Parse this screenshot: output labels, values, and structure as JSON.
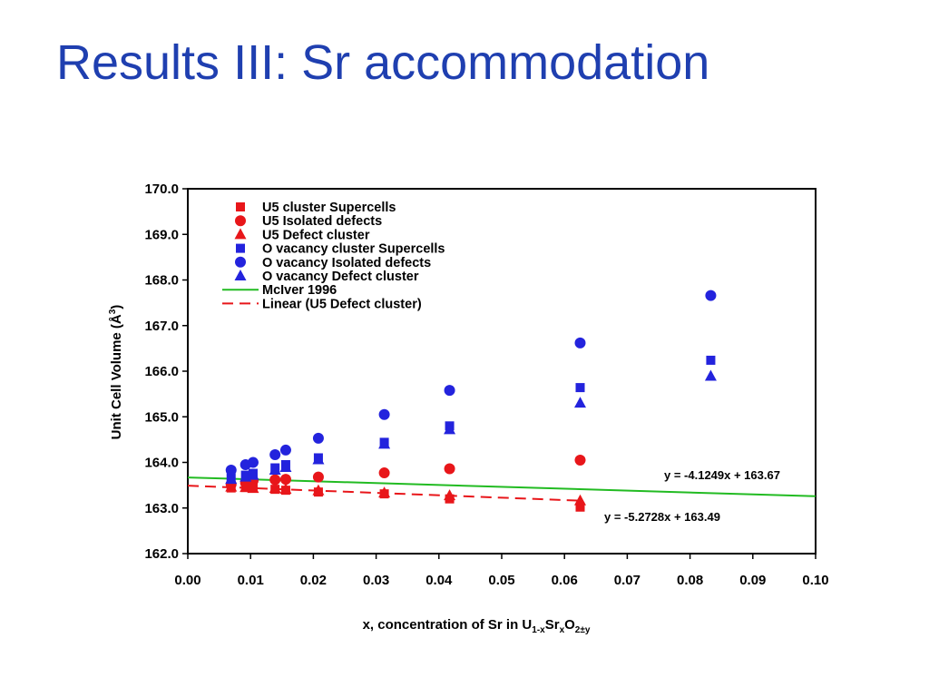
{
  "slide": {
    "title": "Results III: Sr accommodation"
  },
  "chart_data": {
    "type": "scatter",
    "xlabel": "x, concentration of Sr in U1-xSrxO2±y",
    "ylabel": "Unit Cell Volume (Å3)",
    "xlim": [
      0.0,
      0.1
    ],
    "ylim": [
      162.0,
      170.0
    ],
    "xticks": [
      "0.00",
      "0.01",
      "0.02",
      "0.03",
      "0.04",
      "0.05",
      "0.06",
      "0.07",
      "0.08",
      "0.09",
      "0.10"
    ],
    "yticks": [
      "162.0",
      "163.0",
      "164.0",
      "165.0",
      "166.0",
      "167.0",
      "168.0",
      "169.0",
      "170.0"
    ],
    "grid": false,
    "legend_position": "top-left",
    "colors": {
      "red": "#e8161a",
      "blue": "#2323dd",
      "green": "#22bb22"
    },
    "series": [
      {
        "name": "U5 cluster Supercells",
        "marker": "square",
        "color": "#e8161a",
        "points": [
          [
            0.0069,
            163.44
          ],
          [
            0.0092,
            163.45
          ],
          [
            0.0104,
            163.45
          ],
          [
            0.0139,
            163.41
          ],
          [
            0.0156,
            163.39
          ],
          [
            0.0208,
            163.35
          ],
          [
            0.0313,
            163.31
          ],
          [
            0.0417,
            163.2
          ],
          [
            0.0625,
            163.02
          ]
        ]
      },
      {
        "name": "U5 Isolated defects",
        "marker": "circle",
        "color": "#e8161a",
        "points": [
          [
            0.0069,
            163.52
          ],
          [
            0.0092,
            163.55
          ],
          [
            0.0104,
            163.6
          ],
          [
            0.0139,
            163.62
          ],
          [
            0.0156,
            163.63
          ],
          [
            0.0208,
            163.68
          ],
          [
            0.0313,
            163.77
          ],
          [
            0.0417,
            163.86
          ],
          [
            0.0625,
            164.05
          ]
        ]
      },
      {
        "name": "U5 Defect cluster",
        "marker": "triangle",
        "color": "#e8161a",
        "points": [
          [
            0.0069,
            163.46
          ],
          [
            0.0092,
            163.45
          ],
          [
            0.0104,
            163.43
          ],
          [
            0.0139,
            163.43
          ],
          [
            0.0156,
            163.41
          ],
          [
            0.0208,
            163.38
          ],
          [
            0.0313,
            163.33
          ],
          [
            0.0417,
            163.27
          ],
          [
            0.0625,
            163.16
          ]
        ]
      },
      {
        "name": "O vacancy cluster Supercells",
        "marker": "square",
        "color": "#2323dd",
        "points": [
          [
            0.0069,
            163.66
          ],
          [
            0.0092,
            163.72
          ],
          [
            0.0104,
            163.76
          ],
          [
            0.0139,
            163.88
          ],
          [
            0.0156,
            163.95
          ],
          [
            0.0208,
            164.1
          ],
          [
            0.0313,
            164.44
          ],
          [
            0.0417,
            164.8
          ],
          [
            0.0625,
            165.64
          ],
          [
            0.0833,
            166.24
          ]
        ]
      },
      {
        "name": "O vacancy Isolated defects",
        "marker": "circle",
        "color": "#2323dd",
        "points": [
          [
            0.0069,
            163.83
          ],
          [
            0.0092,
            163.95
          ],
          [
            0.0104,
            164.0
          ],
          [
            0.0139,
            164.17
          ],
          [
            0.0156,
            164.27
          ],
          [
            0.0208,
            164.53
          ],
          [
            0.0313,
            165.05
          ],
          [
            0.0417,
            165.58
          ],
          [
            0.0625,
            166.62
          ],
          [
            0.0833,
            167.66
          ]
        ]
      },
      {
        "name": "O vacancy Defect cluster",
        "marker": "triangle",
        "color": "#2323dd",
        "points": [
          [
            0.0069,
            163.63
          ],
          [
            0.0092,
            163.68
          ],
          [
            0.0104,
            163.72
          ],
          [
            0.0139,
            163.83
          ],
          [
            0.0156,
            163.89
          ],
          [
            0.0208,
            164.06
          ],
          [
            0.0313,
            164.4
          ],
          [
            0.0417,
            164.72
          ],
          [
            0.0625,
            165.3
          ],
          [
            0.0833,
            165.89
          ]
        ]
      }
    ],
    "lines": [
      {
        "name": "McIver 1996",
        "style": "solid",
        "color": "#22bb22",
        "slope": -4.1249,
        "intercept": 163.67,
        "x_range": [
          0.0,
          0.1
        ]
      },
      {
        "name": "Linear (U5 Defect cluster)",
        "style": "dashed",
        "color": "#e8161a",
        "slope": -5.2728,
        "intercept": 163.49,
        "x_range": [
          0.0,
          0.0625
        ]
      }
    ],
    "annotations": [
      {
        "text": "y = -4.1249x + 163.67"
      },
      {
        "text": "y = -5.2728x + 163.49"
      }
    ]
  }
}
